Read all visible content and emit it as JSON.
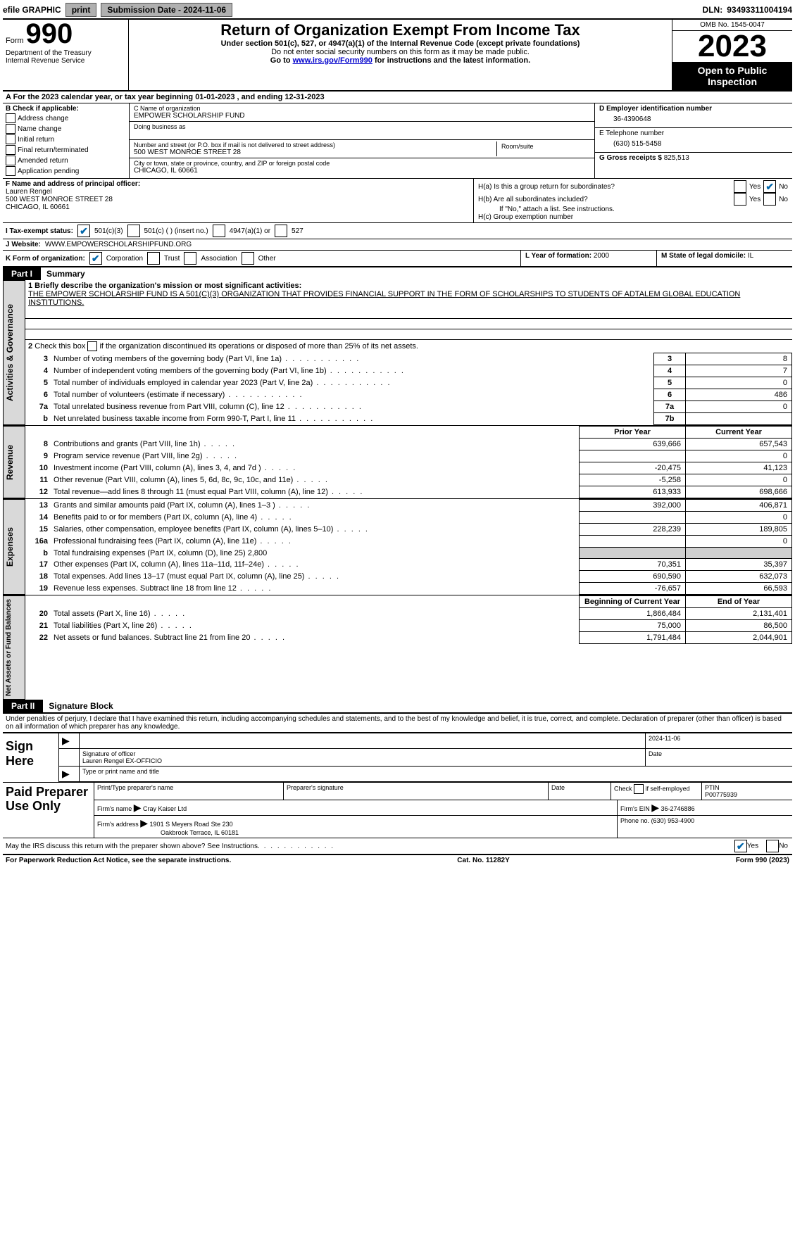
{
  "topbar": {
    "efile": "efile GRAPHIC",
    "print": "print",
    "submission": "Submission Date - 2024-11-06",
    "dln_label": "DLN:",
    "dln": "93493311004194"
  },
  "header": {
    "form_label": "Form",
    "form_number": "990",
    "dept": "Department of the Treasury\nInternal Revenue Service",
    "title": "Return of Organization Exempt From Income Tax",
    "subtitle": "Under section 501(c), 527, or 4947(a)(1) of the Internal Revenue Code (except private foundations)",
    "warn": "Do not enter social security numbers on this form as it may be made public.",
    "goto_prefix": "Go to ",
    "goto_link": "www.irs.gov/Form990",
    "goto_suffix": " for instructions and the latest information.",
    "omb": "OMB No. 1545-0047",
    "year": "2023",
    "otpi": "Open to Public Inspection"
  },
  "sectionA": "A For the 2023 calendar year, or tax year beginning 01-01-2023   , and ending 12-31-2023",
  "boxB": {
    "label": "B Check if applicable:",
    "items": [
      "Address change",
      "Name change",
      "Initial return",
      "Final return/terminated",
      "Amended return",
      "Application pending"
    ]
  },
  "boxC": {
    "name_label": "C Name of organization",
    "name": "EMPOWER SCHOLARSHIP FUND",
    "dba_label": "Doing business as",
    "street_label": "Number and street (or P.O. box if mail is not delivered to street address)",
    "street": "500 WEST MONROE STREET 28",
    "room_label": "Room/suite",
    "city_label": "City or town, state or province, country, and ZIP or foreign postal code",
    "city": "CHICAGO, IL  60661"
  },
  "boxD": {
    "ein_label": "D Employer identification number",
    "ein": "36-4390648",
    "tel_label": "E Telephone number",
    "tel": "(630) 515-5458",
    "gross_label": "G Gross receipts $",
    "gross": "825,513"
  },
  "rowF": {
    "label": "F Name and address of principal officer:",
    "name": "Lauren Rengel",
    "addr1": "500 WEST MONROE STREET 28",
    "addr2": "CHICAGO, IL  60661"
  },
  "rowH": {
    "ha": "H(a)  Is this a group return for subordinates?",
    "hb": "H(b)  Are all subordinates included?",
    "hb_note": "If \"No,\" attach a list. See instructions.",
    "hc": "H(c)  Group exemption number",
    "yes": "Yes",
    "no": "No"
  },
  "rowI": {
    "label": "I  Tax-exempt status:",
    "opt1": "501(c)(3)",
    "opt2": "501(c) (  ) (insert no.)",
    "opt3": "4947(a)(1) or",
    "opt4": "527"
  },
  "rowJ": {
    "label": "J  Website:",
    "value": "WWW.EMPOWERSCHOLARSHIPFUND.ORG"
  },
  "rowK": {
    "label": "K Form of organization:",
    "opts": [
      "Corporation",
      "Trust",
      "Association",
      "Other"
    ]
  },
  "rowL": {
    "label": "L Year of formation:",
    "value": "2000"
  },
  "rowM": {
    "label": "M State of legal domicile:",
    "value": "IL"
  },
  "part1": {
    "label": "Part I",
    "title": "Summary"
  },
  "summary": {
    "side1": "Activities & Governance",
    "side2": "Revenue",
    "side3": "Expenses",
    "side4": "Net Assets or Fund Balances",
    "line1_label": "1  Briefly describe the organization's mission or most significant activities:",
    "mission": "THE EMPOWER SCHOLARSHIP FUND IS A 501(C)(3) ORGANIZATION THAT PROVIDES FINANCIAL SUPPORT IN THE FORM OF SCHOLARSHIPS TO STUDENTS OF ADTALEM GLOBAL EDUCATION INSTITUTIONS.",
    "line2": "Check this box      if the organization discontinued its operations or disposed of more than 25% of its net assets.",
    "rows_ag": [
      {
        "n": "3",
        "desc": "Number of voting members of the governing body (Part VI, line 1a)",
        "box": "3",
        "val": "8"
      },
      {
        "n": "4",
        "desc": "Number of independent voting members of the governing body (Part VI, line 1b)",
        "box": "4",
        "val": "7"
      },
      {
        "n": "5",
        "desc": "Total number of individuals employed in calendar year 2023 (Part V, line 2a)",
        "box": "5",
        "val": "0"
      },
      {
        "n": "6",
        "desc": "Total number of volunteers (estimate if necessary)",
        "box": "6",
        "val": "486"
      },
      {
        "n": "7a",
        "desc": "Total unrelated business revenue from Part VIII, column (C), line 12",
        "box": "7a",
        "val": "0"
      },
      {
        "n": "b",
        "desc": "Net unrelated business taxable income from Form 990-T, Part I, line 11",
        "box": "7b",
        "val": ""
      }
    ],
    "col_prior": "Prior Year",
    "col_current": "Current Year",
    "rows_rev": [
      {
        "n": "8",
        "desc": "Contributions and grants (Part VIII, line 1h)",
        "p": "639,666",
        "c": "657,543"
      },
      {
        "n": "9",
        "desc": "Program service revenue (Part VIII, line 2g)",
        "p": "",
        "c": "0"
      },
      {
        "n": "10",
        "desc": "Investment income (Part VIII, column (A), lines 3, 4, and 7d )",
        "p": "-20,475",
        "c": "41,123"
      },
      {
        "n": "11",
        "desc": "Other revenue (Part VIII, column (A), lines 5, 6d, 8c, 9c, 10c, and 11e)",
        "p": "-5,258",
        "c": "0"
      },
      {
        "n": "12",
        "desc": "Total revenue—add lines 8 through 11 (must equal Part VIII, column (A), line 12)",
        "p": "613,933",
        "c": "698,666"
      }
    ],
    "rows_exp": [
      {
        "n": "13",
        "desc": "Grants and similar amounts paid (Part IX, column (A), lines 1–3 )",
        "p": "392,000",
        "c": "406,871"
      },
      {
        "n": "14",
        "desc": "Benefits paid to or for members (Part IX, column (A), line 4)",
        "p": "",
        "c": "0"
      },
      {
        "n": "15",
        "desc": "Salaries, other compensation, employee benefits (Part IX, column (A), lines 5–10)",
        "p": "228,239",
        "c": "189,805"
      },
      {
        "n": "16a",
        "desc": "Professional fundraising fees (Part IX, column (A), line 11e)",
        "p": "",
        "c": "0"
      },
      {
        "n": "b",
        "desc": "Total fundraising expenses (Part IX, column (D), line 25) 2,800",
        "p": null,
        "c": null
      },
      {
        "n": "17",
        "desc": "Other expenses (Part IX, column (A), lines 11a–11d, 11f–24e)",
        "p": "70,351",
        "c": "35,397"
      },
      {
        "n": "18",
        "desc": "Total expenses. Add lines 13–17 (must equal Part IX, column (A), line 25)",
        "p": "690,590",
        "c": "632,073"
      },
      {
        "n": "19",
        "desc": "Revenue less expenses. Subtract line 18 from line 12",
        "p": "-76,657",
        "c": "66,593"
      }
    ],
    "col_begin": "Beginning of Current Year",
    "col_end": "End of Year",
    "rows_na": [
      {
        "n": "20",
        "desc": "Total assets (Part X, line 16)",
        "p": "1,866,484",
        "c": "2,131,401"
      },
      {
        "n": "21",
        "desc": "Total liabilities (Part X, line 26)",
        "p": "75,000",
        "c": "86,500"
      },
      {
        "n": "22",
        "desc": "Net assets or fund balances. Subtract line 21 from line 20",
        "p": "1,791,484",
        "c": "2,044,901"
      }
    ]
  },
  "part2": {
    "label": "Part II",
    "title": "Signature Block"
  },
  "sig": {
    "decl": "Under penalties of perjury, I declare that I have examined this return, including accompanying schedules and statements, and to the best of my knowledge and belief, it is true, correct, and complete. Declaration of preparer (other than officer) is based on all information of which preparer has any knowledge.",
    "sign_here": "Sign Here",
    "sig_officer": "Signature of officer",
    "officer": "Lauren Rengel  EX-OFFICIO",
    "type_name": "Type or print name and title",
    "date_label": "Date",
    "date": "2024-11-06",
    "paid": "Paid Preparer Use Only",
    "prep_name_label": "Print/Type preparer's name",
    "prep_sig_label": "Preparer's signature",
    "check_if": "Check",
    "self_emp": "if self-employed",
    "ptin_label": "PTIN",
    "ptin": "P00775939",
    "firm_name_label": "Firm's name",
    "firm_name": "Cray Kaiser Ltd",
    "firm_ein_label": "Firm's EIN",
    "firm_ein": "36-2746886",
    "firm_addr_label": "Firm's address",
    "firm_addr1": "1901 S Meyers Road Ste 230",
    "firm_addr2": "Oakbrook Terrace, IL  60181",
    "phone_label": "Phone no.",
    "phone": "(630) 953-4900",
    "discuss": "May the IRS discuss this return with the preparer shown above? See Instructions."
  },
  "footer": {
    "pra": "For Paperwork Reduction Act Notice, see the separate instructions.",
    "cat": "Cat. No. 11282Y",
    "form": "Form 990 (2023)"
  }
}
